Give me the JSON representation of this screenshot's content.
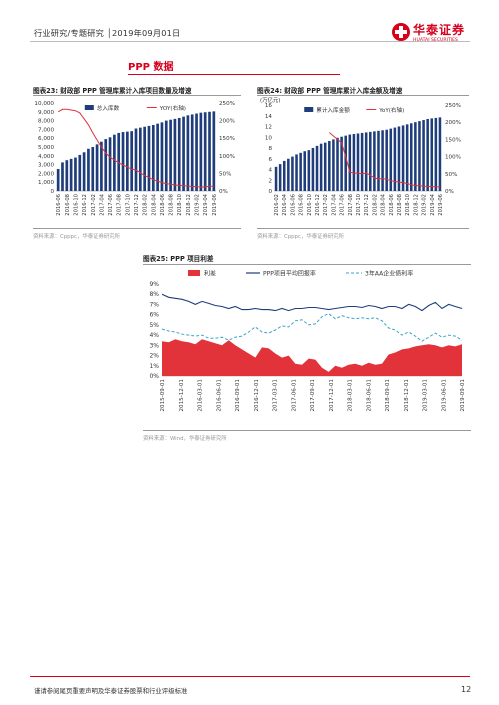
{
  "header": {
    "text": "行业研究/专题研究 │2019年09月01日",
    "logo_cn": "华泰证券",
    "logo_en": "HUATAI SECURITIES"
  },
  "section_title": "PPP 数据",
  "figures": {
    "fig23": {
      "title": "图表23:   财政部 PPP 管理库累计入库项目数量及增速",
      "source": "资料来源：Cpppc，华泰证券研究所"
    },
    "fig24": {
      "title": "图表24:   财政部 PPP 管理库累计入库金额及增速",
      "source": "资料来源：Cpppc，华泰证券研究所"
    },
    "fig25": {
      "title": "图表25:   PPP 项目利差",
      "source": "资料来源：Wind，华泰证券研究所"
    }
  },
  "footer": {
    "text": "谨请参阅尾页重要声明及华泰证券股票和行业评级标准",
    "page": "12"
  },
  "colors": {
    "brand": "#d6001c",
    "bar": "#1f3d7a",
    "line_red": "#e2323a",
    "navy": "#1f3d7a",
    "teal": "#3aa3c9"
  },
  "chart_data": [
    {
      "id": "fig23",
      "type": "bar",
      "categories": [
        "2016-06",
        "2016-07",
        "2016-08",
        "2016-09",
        "2016-10",
        "2016-11",
        "2016-12",
        "2017-01",
        "2017-02",
        "2017-03",
        "2017-04",
        "2017-05",
        "2017-06",
        "2017-07",
        "2017-08",
        "2017-09",
        "2017-10",
        "2017-11",
        "2017-12",
        "2018-01",
        "2018-02",
        "2018-03",
        "2018-04",
        "2018-05",
        "2018-06",
        "2018-07",
        "2018-08",
        "2018-09",
        "2018-10",
        "2018-11",
        "2018-12",
        "2019-01",
        "2019-02",
        "2019-03",
        "2019-04",
        "2019-05",
        "2019-06"
      ],
      "x_tick_labels": [
        "2016-06",
        "2016-08",
        "2016-10",
        "2016-12",
        "2017-02",
        "2017-04",
        "2017-06",
        "2017-08",
        "2017-10",
        "2017-12",
        "2018-02",
        "2018-04",
        "2018-06",
        "2018-08",
        "2018-10",
        "2018-12",
        "2019-02",
        "2019-04",
        "2019-06"
      ],
      "series": [
        {
          "name": "总入库数",
          "type": "bar",
          "axis": "left",
          "values": [
            2500,
            3250,
            3500,
            3650,
            3800,
            4100,
            4400,
            4800,
            5000,
            5300,
            5600,
            5900,
            6100,
            6400,
            6600,
            6700,
            6750,
            6800,
            7100,
            7200,
            7300,
            7400,
            7500,
            7650,
            7800,
            8000,
            8100,
            8200,
            8300,
            8450,
            8600,
            8700,
            8800,
            8900,
            8950,
            9000,
            9050
          ]
        },
        {
          "name": "YOY(右轴)",
          "type": "line",
          "axis": "right",
          "values": [
            225,
            232,
            232,
            230,
            228,
            222,
            205,
            188,
            165,
            145,
            125,
            108,
            96,
            88,
            80,
            74,
            68,
            62,
            60,
            52,
            44,
            38,
            32,
            28,
            24,
            21,
            19,
            17,
            16,
            15,
            14,
            13,
            12,
            11,
            12,
            13,
            14
          ]
        }
      ],
      "ylim_left": [
        0,
        10000
      ],
      "yticks_left": [
        "0",
        "1,000",
        "2,000",
        "3,000",
        "4,000",
        "5,000",
        "6,000",
        "7,000",
        "8,000",
        "9,000",
        "10,000"
      ],
      "ylim_right": [
        0,
        250
      ],
      "yticks_right": [
        "0%",
        "50%",
        "100%",
        "150%",
        "200%",
        "250%"
      ],
      "legend": "top-center"
    },
    {
      "id": "fig24",
      "type": "bar",
      "y_unit": "(万亿元)",
      "categories": [
        "2016-02",
        "2016-03",
        "2016-04",
        "2016-05",
        "2016-06",
        "2016-07",
        "2016-08",
        "2016-09",
        "2016-10",
        "2016-11",
        "2016-12",
        "2017-01",
        "2017-02",
        "2017-03",
        "2017-04",
        "2017-05",
        "2017-06",
        "2017-07",
        "2017-08",
        "2017-09",
        "2017-10",
        "2017-11",
        "2017-12",
        "2018-01",
        "2018-02",
        "2018-03",
        "2018-04",
        "2018-05",
        "2018-06",
        "2018-07",
        "2018-08",
        "2018-09",
        "2018-10",
        "2018-11",
        "2018-12",
        "2019-01",
        "2019-02",
        "2019-03",
        "2019-04",
        "2019-05",
        "2019-06"
      ],
      "x_tick_labels": [
        "2016-02",
        "2016-04",
        "2016-06",
        "2016-08",
        "2016-10",
        "2016-12",
        "2017-02",
        "2017-04",
        "2017-06",
        "2017-08",
        "2017-10",
        "2017-12",
        "2018-02",
        "2018-04",
        "2018-06",
        "2018-08",
        "2018-10",
        "2018-12",
        "2019-02",
        "2019-04",
        "2019-06"
      ],
      "series": [
        {
          "name": "累计入库金额",
          "type": "bar",
          "axis": "left",
          "values": [
            4.5,
            5.0,
            5.6,
            6.0,
            6.4,
            6.8,
            7.1,
            7.4,
            7.6,
            8.0,
            8.4,
            8.8,
            9.0,
            9.3,
            9.6,
            9.9,
            10.1,
            10.3,
            10.5,
            10.6,
            10.7,
            10.8,
            10.9,
            11.0,
            11.1,
            11.2,
            11.3,
            11.4,
            11.6,
            11.8,
            12.0,
            12.2,
            12.4,
            12.6,
            12.8,
            13.0,
            13.2,
            13.4,
            13.5,
            13.6,
            13.7
          ]
        },
        {
          "name": "YoY(右轴)",
          "type": "line",
          "axis": "right",
          "values": [
            null,
            null,
            null,
            null,
            null,
            null,
            null,
            null,
            null,
            null,
            null,
            null,
            null,
            170,
            160,
            150,
            140,
            100,
            55,
            52,
            52,
            50,
            52,
            46,
            38,
            35,
            36,
            34,
            30,
            28,
            26,
            24,
            22,
            18,
            16,
            15,
            14,
            13,
            13,
            12,
            12
          ]
        }
      ],
      "ylim_left": [
        0,
        16
      ],
      "yticks_left": [
        "0",
        "2",
        "4",
        "6",
        "8",
        "10",
        "12",
        "14",
        "16"
      ],
      "ylim_right": [
        0,
        250
      ],
      "yticks_right": [
        "0%",
        "50%",
        "100%",
        "150%",
        "200%",
        "250%"
      ],
      "legend": "top-center"
    },
    {
      "id": "fig25",
      "type": "area",
      "x_tick_labels": [
        "2015-09-01",
        "2015-12-01",
        "2016-03-01",
        "2016-06-01",
        "2016-09-01",
        "2016-12-01",
        "2017-03-01",
        "2017-06-01",
        "2017-09-01",
        "2017-12-01",
        "2018-03-01",
        "2018-06-01",
        "2018-09-01",
        "2018-12-01",
        "2019-03-01",
        "2019-06-01",
        "2019-09-01"
      ],
      "series": [
        {
          "name": "利差",
          "type": "area",
          "values": [
            3.4,
            3.3,
            3.6,
            3.4,
            3.3,
            3.1,
            3.6,
            3.4,
            3.2,
            3.0,
            3.5,
            3.0,
            2.6,
            2.2,
            1.8,
            2.8,
            2.7,
            2.2,
            1.8,
            2.0,
            1.2,
            1.1,
            1.7,
            1.6,
            0.8,
            0.4,
            1.0,
            0.8,
            1.1,
            1.2,
            1.0,
            1.3,
            1.1,
            1.2,
            2.1,
            2.3,
            2.6,
            2.7,
            2.9,
            3.0,
            3.1,
            3.0,
            2.8,
            3.0,
            2.9,
            3.1
          ]
        },
        {
          "name": "PPP项目平均回报率",
          "type": "line",
          "values": [
            8.0,
            7.7,
            7.6,
            7.5,
            7.3,
            7.0,
            7.3,
            7.1,
            6.9,
            6.8,
            6.6,
            6.8,
            6.5,
            6.5,
            6.6,
            6.5,
            6.5,
            6.4,
            6.6,
            6.4,
            6.6,
            6.6,
            6.7,
            6.7,
            6.6,
            6.5,
            6.6,
            6.7,
            6.8,
            6.8,
            6.7,
            6.9,
            6.8,
            6.6,
            6.8,
            6.8,
            6.6,
            7.0,
            6.8,
            6.4,
            6.9,
            7.2,
            6.6,
            7.0,
            6.8,
            6.6
          ]
        },
        {
          "name": "3年AA企业债利率",
          "type": "dashed",
          "values": [
            4.6,
            4.4,
            4.3,
            4.1,
            4.0,
            3.9,
            4.0,
            3.7,
            3.7,
            3.8,
            3.5,
            3.8,
            3.9,
            4.3,
            4.8,
            4.3,
            4.2,
            4.5,
            4.9,
            4.8,
            5.4,
            5.5,
            5.0,
            5.1,
            5.8,
            6.1,
            5.6,
            5.9,
            5.7,
            5.6,
            5.7,
            5.6,
            5.7,
            5.4,
            4.7,
            4.5,
            4.0,
            4.3,
            3.9,
            3.4,
            3.8,
            4.2,
            3.8,
            4.0,
            3.9,
            3.5
          ]
        }
      ],
      "ylim": [
        0,
        9
      ],
      "yticks": [
        "0%",
        "1%",
        "2%",
        "3%",
        "4%",
        "5%",
        "6%",
        "7%",
        "8%",
        "9%"
      ],
      "legend": "top"
    }
  ]
}
